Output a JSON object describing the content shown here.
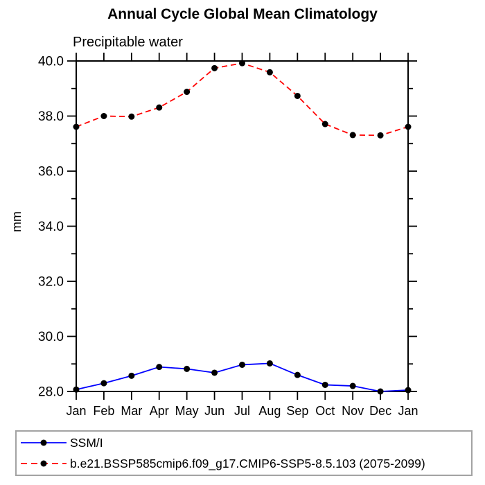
{
  "chart_data": {
    "type": "line",
    "title": "Annual Cycle Global Mean Climatology",
    "subtitle": "Precipitable water",
    "ylabel": "mm",
    "xlabel": "",
    "categories": [
      "Jan",
      "Feb",
      "Mar",
      "Apr",
      "May",
      "Jun",
      "Jul",
      "Aug",
      "Sep",
      "Oct",
      "Nov",
      "Dec",
      "Jan"
    ],
    "ylim": [
      28.0,
      40.0
    ],
    "ytick_major": 2.0,
    "ytick_minor": 1.0,
    "ytick_label_format": "one-decimal",
    "grid": false,
    "legend_position": "bottom-left-box",
    "axis_color": "#000000",
    "marker_shape": "filled-circle",
    "series": [
      {
        "name": "SSM/I",
        "style": "solid",
        "line_color": "#0000ff",
        "marker_color": "#000000",
        "values": [
          28.07,
          28.3,
          28.57,
          28.89,
          28.82,
          28.68,
          28.97,
          29.02,
          28.6,
          28.24,
          28.2,
          28.0,
          28.05
        ]
      },
      {
        "name": "b.e21.BSSP585cmip6.f09_g17.CMIP6-SSP5-8.5.103 (2075-2099)",
        "style": "dashed",
        "line_color": "#ff0000",
        "marker_color": "#000000",
        "values": [
          37.61,
          38.0,
          37.98,
          38.31,
          38.88,
          39.74,
          39.92,
          39.59,
          38.73,
          37.71,
          37.31,
          37.3,
          37.61
        ]
      }
    ]
  }
}
